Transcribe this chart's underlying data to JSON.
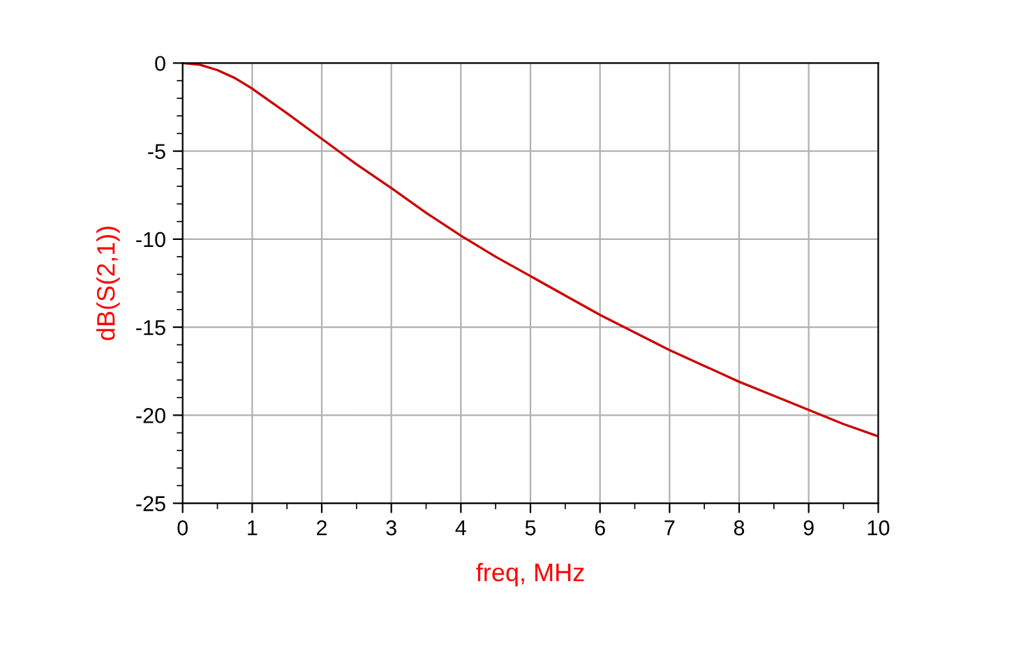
{
  "chart_data": {
    "type": "line",
    "xlabel": "freq, MHz",
    "ylabel": "dB(S(2,1))",
    "x": [
      0,
      0.25,
      0.5,
      0.75,
      1,
      1.5,
      2,
      2.5,
      3,
      3.5,
      4,
      4.5,
      5,
      5.5,
      6,
      6.5,
      7,
      7.5,
      8,
      8.5,
      9,
      9.5,
      10
    ],
    "series": [
      {
        "color": "#cc0000",
        "values": [
          0,
          -0.1,
          -0.4,
          -0.85,
          -1.45,
          -2.85,
          -4.3,
          -5.75,
          -7.1,
          -8.5,
          -9.8,
          -11.0,
          -12.1,
          -13.2,
          -14.3,
          -15.3,
          -16.3,
          -17.2,
          -18.1,
          -18.9,
          -19.7,
          -20.5,
          -21.2
        ]
      }
    ],
    "xlim": [
      0,
      10
    ],
    "ylim": [
      -25,
      0
    ],
    "xticks": [
      0,
      1,
      2,
      3,
      4,
      5,
      6,
      7,
      8,
      9,
      10
    ],
    "yticks": [
      -25,
      -20,
      -15,
      -10,
      -5,
      0
    ],
    "grid": true,
    "marker": "none",
    "line_style": "solid"
  }
}
